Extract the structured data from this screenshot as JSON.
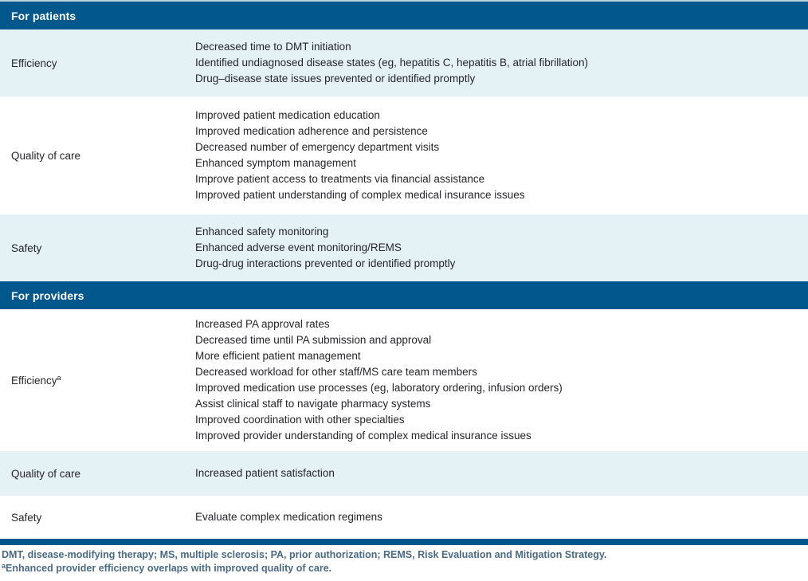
{
  "colors": {
    "header_bg": "#02588c",
    "row_alt_bg": "#e5f2f5",
    "body_text": "#26262a",
    "footnote_text": "#4a6a84",
    "top_edge_line": "#b9d2e0"
  },
  "table": {
    "sections": [
      {
        "header": "For patients",
        "rows": [
          {
            "label": "Efficiency",
            "items": [
              "Decreased time to DMT initiation",
              "Identified undiagnosed disease states (eg, hepatitis C, hepatitis B, atrial fibrillation)",
              "Drug–disease state issues prevented or identified promptly"
            ]
          },
          {
            "label": "Quality of care",
            "items": [
              "Improved patient medication education",
              "Improved medication adherence and persistence",
              "Decreased number of emergency department visits",
              "Enhanced symptom management",
              "Improve patient access to treatments via financial assistance",
              "Improved patient understanding of complex medical insurance issues"
            ]
          },
          {
            "label": "Safety",
            "items": [
              "Enhanced safety monitoring",
              "Enhanced adverse event monitoring/REMS",
              "Drug-drug interactions prevented or identified promptly"
            ]
          }
        ]
      },
      {
        "header": "For providers",
        "rows": [
          {
            "label": "Efficiency",
            "label_sup": "a",
            "items": [
              "Increased PA approval rates",
              "Decreased time until PA submission and approval",
              "More efficient patient management",
              "Decreased workload for other staff/MS care team members",
              "Improved medication use processes (eg, laboratory ordering, infusion orders)",
              "Assist clinical staff to navigate pharmacy systems",
              "Improved coordination with other specialties",
              "Improved provider understanding of complex medical insurance issues"
            ]
          },
          {
            "label": "Quality of care",
            "items": [
              "Increased patient satisfaction"
            ]
          },
          {
            "label": "Safety",
            "items": [
              "Evaluate complex medication regimens"
            ]
          }
        ]
      }
    ]
  },
  "footnotes": {
    "abbreviations": "DMT, disease-modifying therapy; MS, multiple sclerosis; PA, prior authorization; REMS, Risk Evaluation and Mitigation Strategy.",
    "note_marker": "a",
    "note_text": "Enhanced provider efficiency overlaps with improved quality of care."
  }
}
